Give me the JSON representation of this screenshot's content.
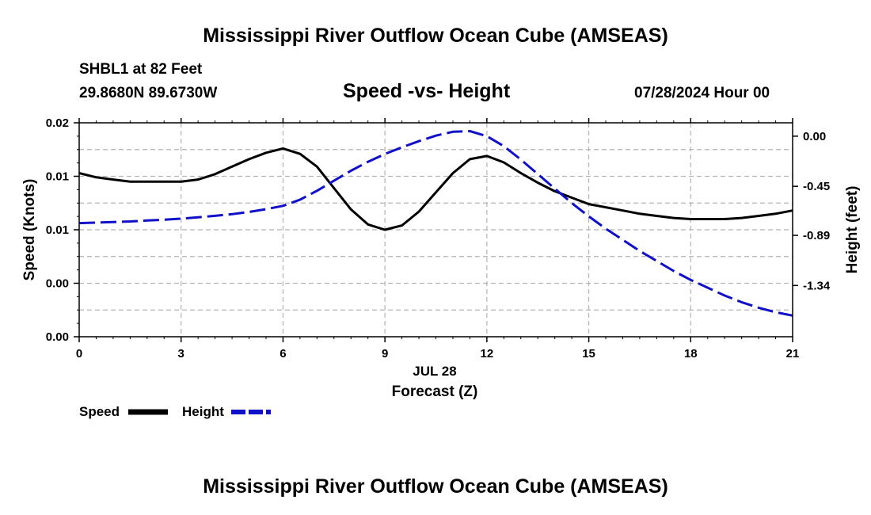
{
  "page": {
    "title": "Mississippi River Outflow Ocean Cube (AMSEAS)",
    "title_bottom": "Mississippi River Outflow Ocean Cube (AMSEAS)",
    "station": "SHBL1 at 82 Feet",
    "coords": "29.8680N  89.6730W",
    "date": "07/28/2024 Hour 00"
  },
  "legend": {
    "speed_label": "Speed",
    "height_label": "Height"
  },
  "colors": {
    "speed": "#000000",
    "height": "#1010c8",
    "grid": "#b4b4b4"
  },
  "chart_data": {
    "type": "line",
    "title": "Speed -vs- Height",
    "xlabel": "Forecast (Z)",
    "xlabel_date": "JUL 28",
    "ylabel": "Speed (Knots)",
    "y2label": "Height (feet)",
    "xlim": [
      0,
      21
    ],
    "ylim": [
      0,
      0.02
    ],
    "y2lim": [
      -1.8,
      0.12
    ],
    "x_ticks": [
      0,
      3,
      6,
      9,
      12,
      15,
      18,
      21
    ],
    "x_tick_labels": [
      "0",
      "3",
      "6",
      "9",
      "12",
      "15",
      "18",
      "21"
    ],
    "y_ticks": [
      0,
      0.005,
      0.01,
      0.015,
      0.02
    ],
    "y_tick_labels": [
      "0.00",
      "0.00",
      "0.01",
      "0.01",
      "0.02"
    ],
    "y2_ticks": [
      0.0,
      -0.45,
      -0.89,
      -1.34
    ],
    "y2_tick_labels": [
      "0.00",
      "-0.45",
      "-0.89",
      "-1.34"
    ],
    "grid": true,
    "series": [
      {
        "name": "Speed",
        "axis": "left",
        "style": "solid",
        "x": [
          0,
          0.5,
          1,
          1.5,
          2,
          2.5,
          3,
          3.5,
          4,
          4.5,
          5,
          5.5,
          6,
          6.5,
          7,
          7.5,
          8,
          8.5,
          9,
          9.5,
          10,
          10.5,
          11,
          11.5,
          12,
          12.5,
          13,
          13.5,
          14,
          14.5,
          15,
          15.5,
          16,
          16.5,
          17,
          17.5,
          18,
          18.5,
          19,
          19.5,
          20,
          20.5,
          21
        ],
        "values": [
          0.0153,
          0.0149,
          0.0147,
          0.0145,
          0.0145,
          0.0145,
          0.0145,
          0.0147,
          0.0152,
          0.0159,
          0.0166,
          0.0172,
          0.0176,
          0.0171,
          0.0159,
          0.0139,
          0.0119,
          0.0105,
          0.01,
          0.0104,
          0.0117,
          0.0135,
          0.0153,
          0.0166,
          0.0169,
          0.0163,
          0.0153,
          0.0144,
          0.0136,
          0.013,
          0.0124,
          0.0121,
          0.0118,
          0.0115,
          0.0113,
          0.0111,
          0.011,
          0.011,
          0.011,
          0.0111,
          0.0113,
          0.0115,
          0.0118
        ]
      },
      {
        "name": "Height",
        "axis": "right",
        "style": "dashed",
        "x": [
          0,
          0.5,
          1,
          1.5,
          2,
          2.5,
          3,
          3.5,
          4,
          4.5,
          5,
          5.5,
          6,
          6.5,
          7,
          7.5,
          8,
          8.5,
          9,
          9.5,
          10,
          10.5,
          11,
          11.5,
          12,
          12.5,
          13,
          13.5,
          14,
          14.5,
          15,
          15.5,
          16,
          16.5,
          17,
          17.5,
          18,
          18.5,
          19,
          19.5,
          20,
          20.5,
          21
        ],
        "values": [
          -0.78,
          -0.775,
          -0.77,
          -0.765,
          -0.757,
          -0.75,
          -0.74,
          -0.728,
          -0.715,
          -0.7,
          -0.68,
          -0.655,
          -0.625,
          -0.57,
          -0.49,
          -0.4,
          -0.31,
          -0.23,
          -0.16,
          -0.1,
          -0.045,
          0.005,
          0.04,
          0.045,
          0.0,
          -0.09,
          -0.21,
          -0.34,
          -0.47,
          -0.6,
          -0.72,
          -0.83,
          -0.93,
          -1.03,
          -1.12,
          -1.21,
          -1.29,
          -1.36,
          -1.43,
          -1.49,
          -1.54,
          -1.58,
          -1.61
        ]
      }
    ]
  }
}
